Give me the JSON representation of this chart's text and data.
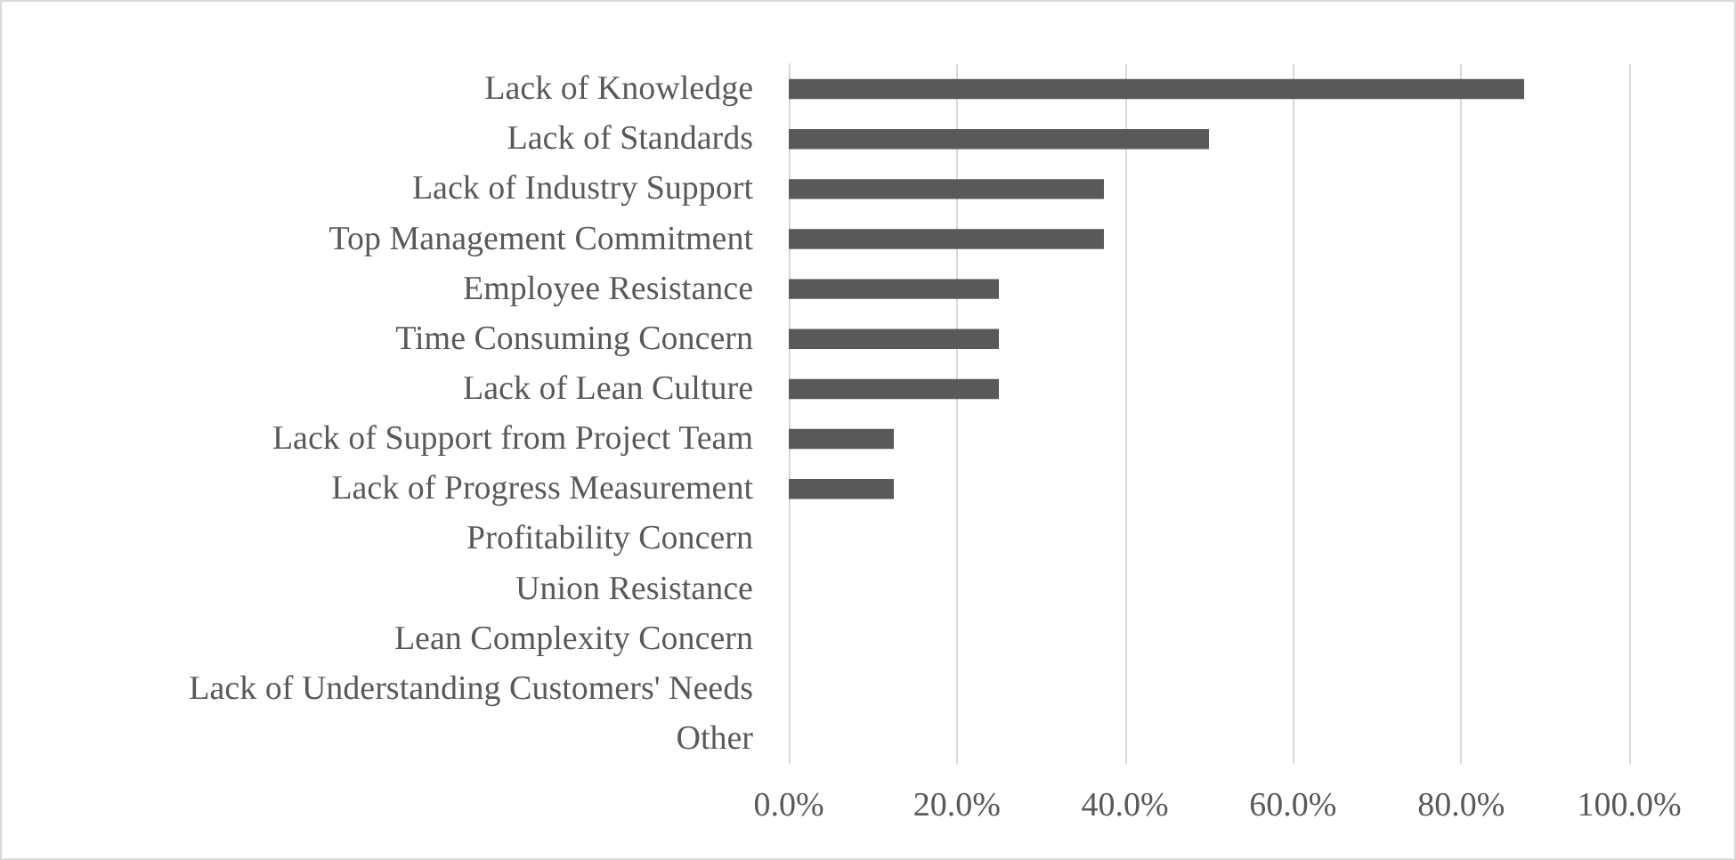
{
  "chart_data": {
    "type": "bar",
    "orientation": "horizontal",
    "categories": [
      "Lack of Knowledge",
      "Lack of Standards",
      "Lack of Industry Support",
      "Top Management Commitment",
      "Employee Resistance",
      "Time Consuming Concern",
      "Lack of Lean Culture",
      "Lack of Support from Project Team",
      "Lack of Progress Measurement",
      "Profitability Concern",
      "Union Resistance",
      "Lean Complexity Concern",
      "Lack of Understanding Customers' Needs",
      "Other"
    ],
    "values": [
      87.5,
      50,
      37.5,
      37.5,
      25,
      25,
      25,
      12.5,
      12.5,
      0,
      0,
      0,
      0,
      0
    ],
    "color": "#595959",
    "xlim": [
      0,
      100
    ],
    "xticks": [
      {
        "value": 0,
        "label": "0.0%"
      },
      {
        "value": 20,
        "label": "20.0%"
      },
      {
        "value": 40,
        "label": "40.0%"
      },
      {
        "value": 60,
        "label": "60.0%"
      },
      {
        "value": 80,
        "label": "80.0%"
      },
      {
        "value": 100,
        "label": "100.0%"
      }
    ],
    "grid": "x"
  }
}
